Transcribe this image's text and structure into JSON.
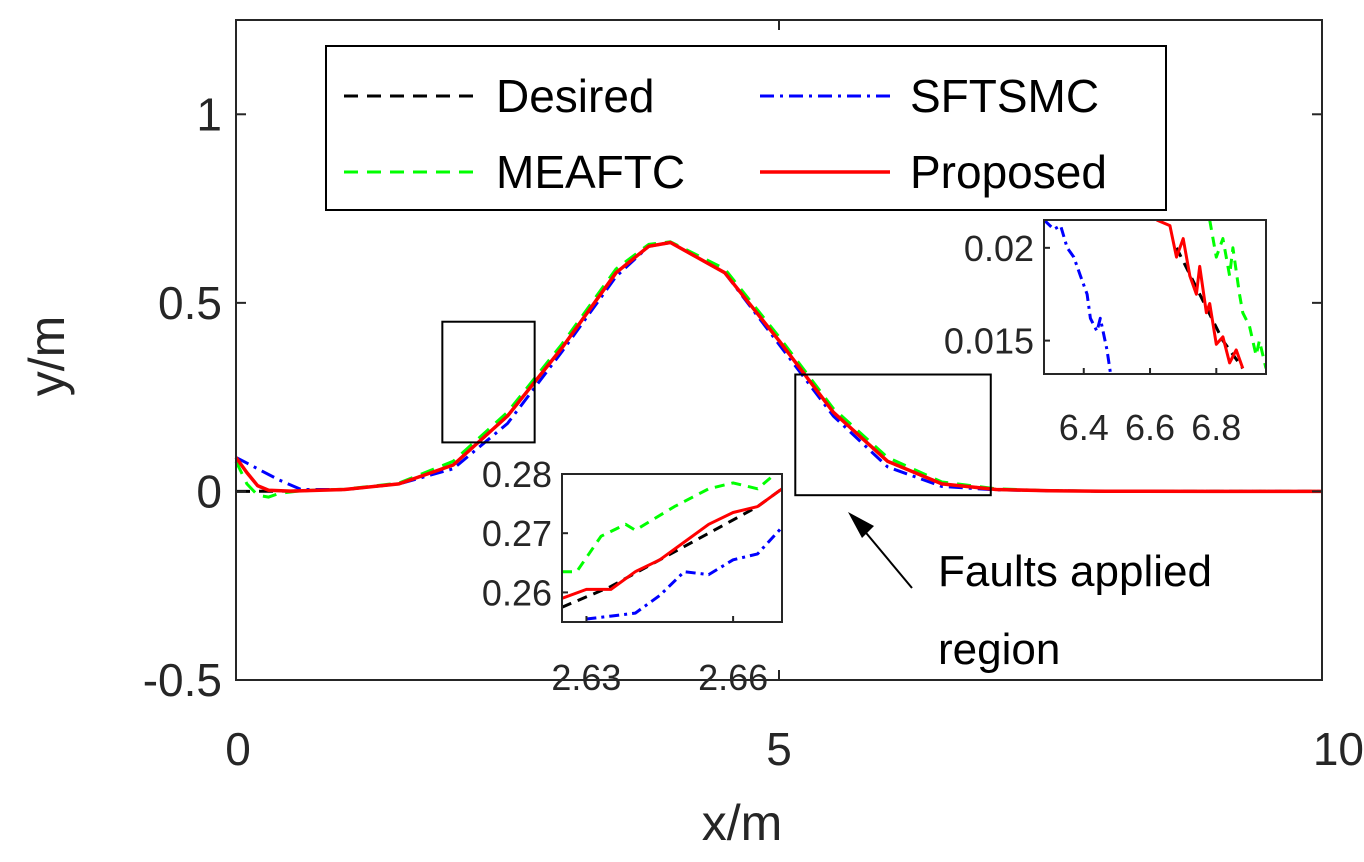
{
  "chart_data": {
    "type": "line",
    "xlabel": "x/m",
    "ylabel": "y/m",
    "xlim": [
      0,
      10
    ],
    "ylim": [
      -0.5,
      1.25
    ],
    "xticks": [
      "0",
      "5",
      "10"
    ],
    "yticks": [
      "-0.5",
      "0",
      "0.5",
      "1"
    ],
    "grid": false,
    "legend": {
      "placement": "top",
      "entries": [
        {
          "name": "Desired",
          "color": "#000000",
          "style": "dashed"
        },
        {
          "name": "SFTSMC",
          "color": "#0000ff",
          "style": "dashdot"
        },
        {
          "name": "MEAFTC",
          "color": "#00ff00",
          "style": "dashed"
        },
        {
          "name": "Proposed",
          "color": "#ff0000",
          "style": "solid"
        }
      ]
    },
    "series": [
      {
        "name": "Desired",
        "x": [
          0,
          0.5,
          1,
          1.5,
          2,
          2.5,
          3,
          3.5,
          3.8,
          4,
          4.5,
          5,
          5.5,
          6,
          6.5,
          7,
          7.5,
          8,
          9,
          10
        ],
        "y": [
          0,
          0.001,
          0.005,
          0.02,
          0.07,
          0.2,
          0.38,
          0.58,
          0.65,
          0.66,
          0.58,
          0.4,
          0.21,
          0.08,
          0.02,
          0.005,
          0.002,
          0.0005,
          0,
          0
        ]
      },
      {
        "name": "SFTSMC",
        "x": [
          0,
          0.1,
          0.2,
          0.4,
          0.6,
          1,
          1.5,
          2,
          2.5,
          3,
          3.5,
          3.8,
          4,
          4.5,
          5,
          5.5,
          6,
          6.5,
          7,
          7.5,
          8,
          9,
          10
        ],
        "y": [
          0.09,
          0.075,
          0.06,
          0.03,
          0.005,
          0.005,
          0.02,
          0.06,
          0.18,
          0.37,
          0.57,
          0.65,
          0.66,
          0.58,
          0.39,
          0.2,
          0.065,
          0.013,
          0.004,
          0.002,
          0.0005,
          0,
          0
        ]
      },
      {
        "name": "MEAFTC",
        "x": [
          0,
          0.1,
          0.2,
          0.3,
          0.4,
          0.6,
          1,
          1.5,
          2,
          2.5,
          3,
          3.5,
          3.8,
          4,
          4.5,
          5,
          5.5,
          6,
          6.5,
          7,
          7.5,
          8,
          9,
          10
        ],
        "y": [
          0.08,
          0.02,
          -0.01,
          -0.015,
          -0.005,
          0.002,
          0.006,
          0.022,
          0.08,
          0.21,
          0.39,
          0.59,
          0.655,
          0.662,
          0.59,
          0.41,
          0.22,
          0.09,
          0.025,
          0.007,
          0.002,
          0.0005,
          0,
          0
        ]
      },
      {
        "name": "Proposed",
        "x": [
          0,
          0.1,
          0.2,
          0.3,
          0.5,
          1,
          1.5,
          2,
          2.5,
          3,
          3.5,
          3.8,
          4,
          4.5,
          5,
          5.5,
          6,
          6.5,
          7,
          7.5,
          8,
          9,
          10
        ],
        "y": [
          0.09,
          0.05,
          0.015,
          0.003,
          0.001,
          0.005,
          0.02,
          0.07,
          0.2,
          0.38,
          0.58,
          0.65,
          0.66,
          0.58,
          0.4,
          0.21,
          0.08,
          0.02,
          0.005,
          0.002,
          0.0005,
          0,
          0
        ]
      }
    ],
    "zoom_boxes": [
      {
        "xlim": [
          1.9,
          2.75
        ],
        "ylim": [
          0.13,
          0.45
        ]
      },
      {
        "xlim": [
          5.15,
          6.95
        ],
        "ylim": [
          -0.01,
          0.31
        ]
      }
    ],
    "insets": [
      {
        "xlim": [
          2.625,
          2.67
        ],
        "ylim": [
          0.255,
          0.28
        ],
        "xticks": [
          "2.63",
          "2.66"
        ],
        "yticks": [
          "0.26",
          "0.27",
          "0.28"
        ],
        "series": [
          {
            "name": "Desired",
            "x": [
              2.625,
              2.635,
              2.645,
              2.655,
              2.665,
              2.67
            ],
            "y": [
              0.2575,
              0.261,
              0.2655,
              0.27,
              0.2745,
              0.2775
            ]
          },
          {
            "name": "SFTSMC",
            "x": [
              2.63,
              2.635,
              2.64,
              2.645,
              2.65,
              2.655,
              2.66,
              2.665,
              2.67
            ],
            "y": [
              0.2555,
              0.256,
              0.2565,
              0.2595,
              0.2635,
              0.263,
              0.2655,
              0.2665,
              0.271
            ]
          },
          {
            "name": "MEAFTC",
            "x": [
              2.625,
              2.628,
              2.633,
              2.638,
              2.64,
              2.648,
              2.655,
              2.66,
              2.665,
              2.67
            ],
            "y": [
              0.2635,
              0.2635,
              0.2695,
              0.2715,
              0.2705,
              0.2745,
              0.2775,
              0.2785,
              0.2775,
              0.281
            ]
          },
          {
            "name": "Proposed",
            "x": [
              2.625,
              2.63,
              2.635,
              2.64,
              2.645,
              2.65,
              2.655,
              2.66,
              2.665,
              2.67
            ],
            "y": [
              0.259,
              0.2605,
              0.2605,
              0.2635,
              0.2655,
              0.2685,
              0.2715,
              0.2735,
              0.2745,
              0.2775
            ]
          }
        ]
      },
      {
        "xlim": [
          6.28,
          6.95
        ],
        "ylim": [
          0.0132,
          0.0215
        ],
        "xticks": [
          "6.4",
          "6.6",
          "6.8"
        ],
        "yticks": [
          "0.015",
          "0.02"
        ],
        "series": [
          {
            "name": "Desired",
            "x": [
              6.68,
              6.75,
              6.82,
              6.88
            ],
            "y": [
              0.02,
              0.0175,
              0.015,
              0.0135
            ]
          },
          {
            "name": "SFTSMC",
            "x": [
              6.28,
              6.31,
              6.33,
              6.35,
              6.37,
              6.39,
              6.41,
              6.42,
              6.44,
              6.45,
              6.47,
              6.48
            ],
            "y": [
              0.0215,
              0.021,
              0.0212,
              0.02,
              0.0195,
              0.0185,
              0.0175,
              0.0162,
              0.0155,
              0.0162,
              0.0145,
              0.0133
            ]
          },
          {
            "name": "MEAFTC",
            "x": [
              6.78,
              6.8,
              6.82,
              6.84,
              6.85,
              6.87,
              6.88,
              6.9,
              6.92,
              6.93,
              6.95
            ],
            "y": [
              0.0215,
              0.0195,
              0.0205,
              0.0185,
              0.02,
              0.0175,
              0.0165,
              0.0158,
              0.0142,
              0.015,
              0.0135
            ]
          },
          {
            "name": "Proposed",
            "x": [
              6.62,
              6.66,
              6.68,
              6.7,
              6.72,
              6.74,
              6.75,
              6.77,
              6.78,
              6.8,
              6.82,
              6.84,
              6.86,
              6.88
            ],
            "y": [
              0.0215,
              0.0212,
              0.0195,
              0.0205,
              0.0185,
              0.0175,
              0.019,
              0.0165,
              0.017,
              0.0148,
              0.0152,
              0.0138,
              0.0145,
              0.0135
            ]
          }
        ]
      }
    ],
    "annotation": {
      "text_lines": [
        "Faults applied",
        "region"
      ]
    }
  }
}
